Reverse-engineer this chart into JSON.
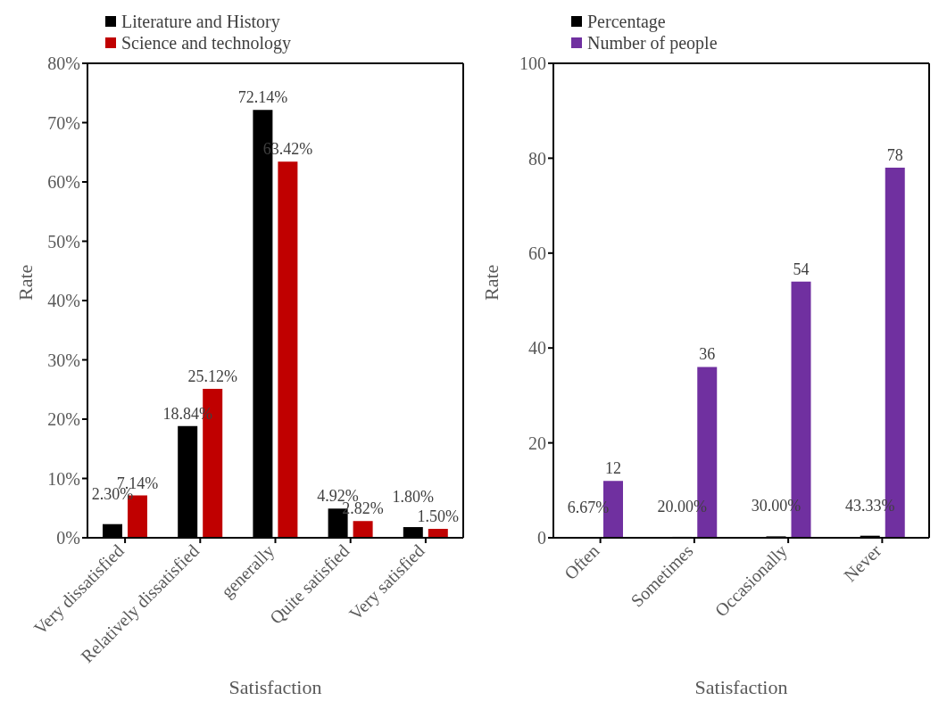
{
  "chart_data": [
    {
      "type": "bar",
      "xlabel": "Satisfaction",
      "ylabel": "Rate",
      "categories": [
        "Very dissatisfied",
        "Relatively dissatisfied",
        "generally",
        "Quite satisfied",
        "Very satisfied"
      ],
      "series": [
        {
          "name": "Literature and History",
          "color": "#000000",
          "values": [
            2.3,
            18.84,
            72.14,
            4.92,
            1.8
          ],
          "value_labels": [
            "2.30%",
            "18.84%",
            "72.14%",
            "4.92%",
            "1.80%"
          ]
        },
        {
          "name": "Science and technology",
          "color": "#c00000",
          "values": [
            7.14,
            25.12,
            63.42,
            2.82,
            1.5
          ],
          "value_labels": [
            "7.14%",
            "25.12%",
            "63.42%",
            "2.82%",
            "1.50%"
          ]
        }
      ],
      "ylim": [
        0,
        80
      ],
      "yticks": [
        {
          "value": 0,
          "label": "0%"
        },
        {
          "value": 10,
          "label": "10%"
        },
        {
          "value": 20,
          "label": "20%"
        },
        {
          "value": 30,
          "label": "30%"
        },
        {
          "value": 40,
          "label": "40%"
        },
        {
          "value": 50,
          "label": "50%"
        },
        {
          "value": 60,
          "label": "60%"
        },
        {
          "value": 70,
          "label": "70%"
        },
        {
          "value": 80,
          "label": "80%"
        }
      ],
      "grid": false,
      "legend": "top left"
    },
    {
      "type": "bar",
      "xlabel": "Satisfaction",
      "ylabel": "Rate",
      "categories": [
        "Often",
        "Sometimes",
        "Occasionally",
        "Never"
      ],
      "series": [
        {
          "name": "Percentage",
          "color": "#000000",
          "values": [
            0.0667,
            0.2,
            0.3,
            0.4333
          ],
          "value_labels": [
            "6.67%",
            "20.00%",
            "30.00%",
            "43.33%"
          ]
        },
        {
          "name": "Number of people",
          "color": "#7030a0",
          "values": [
            12,
            36,
            54,
            78
          ],
          "value_labels": [
            "12",
            "36",
            "54",
            "78"
          ]
        }
      ],
      "ylim": [
        0,
        100
      ],
      "yticks": [
        0,
        20,
        40,
        60,
        80,
        100
      ],
      "grid": false,
      "legend": "top left"
    }
  ]
}
